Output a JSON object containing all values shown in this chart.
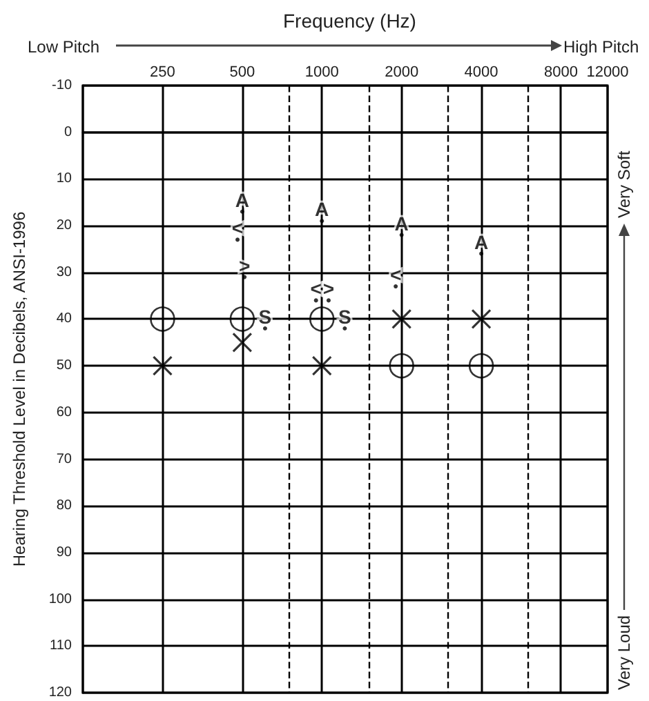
{
  "chart_data": {
    "type": "scatter",
    "title": "Frequency (Hz)",
    "ylabel": "Hearing Threshold Level in Decibels, ANSI-1996",
    "x": [
      250,
      500,
      1000,
      2000,
      4000
    ],
    "series": [
      {
        "color": "#000000",
        "marker": "circle",
        "values": [
          40,
          40,
          40,
          50,
          50
        ]
      },
      {
        "color": "#000000",
        "marker": "cross",
        "values": [
          50,
          45,
          50,
          40,
          40
        ]
      },
      {
        "color": "#000000",
        "marker": "circle",
        "x": [
          500,
          1000,
          2000,
          4000
        ],
        "values": [
          17,
          19,
          22,
          26
        ],
        "value_labels": [
          "A",
          "A",
          "A",
          "A"
        ]
      },
      {
        "color": "#000000",
        "marker": "circle",
        "x": [
          480,
          950,
          1900
        ],
        "values": [
          23,
          36,
          33
        ],
        "value_labels": [
          "<",
          "<",
          "<"
        ]
      },
      {
        "color": "#000000",
        "marker": "circle",
        "x": [
          510,
          1060
        ],
        "values": [
          31,
          36
        ],
        "value_labels": [
          ">",
          ">"
        ]
      },
      {
        "color": "#000000",
        "marker": "circle",
        "x": [
          610,
          1220
        ],
        "values": [
          42,
          42
        ],
        "value_labels": [
          "S",
          "S"
        ]
      }
    ],
    "log": "x",
    "xlim": [
      125,
      12000
    ],
    "xticks": [
      250,
      500,
      1000,
      2000,
      4000,
      8000,
      12000
    ],
    "ylim": [
      120,
      -10
    ],
    "yticks": [
      -10,
      0,
      10,
      20,
      30,
      40,
      50,
      60,
      70,
      80,
      90,
      100,
      110,
      120
    ],
    "grid": true,
    "ref_lines": [
      {
        "axis": "x",
        "value": 750,
        "line_style": "dashed"
      },
      {
        "axis": "x",
        "value": 1500,
        "line_style": "dashed"
      },
      {
        "axis": "x",
        "value": 3000,
        "line_style": "dashed"
      },
      {
        "axis": "x",
        "value": 6000,
        "line_style": "dashed"
      }
    ],
    "annotations": [
      "Low Pitch",
      "High Pitch",
      "Very Soft",
      "Very Loud"
    ]
  }
}
